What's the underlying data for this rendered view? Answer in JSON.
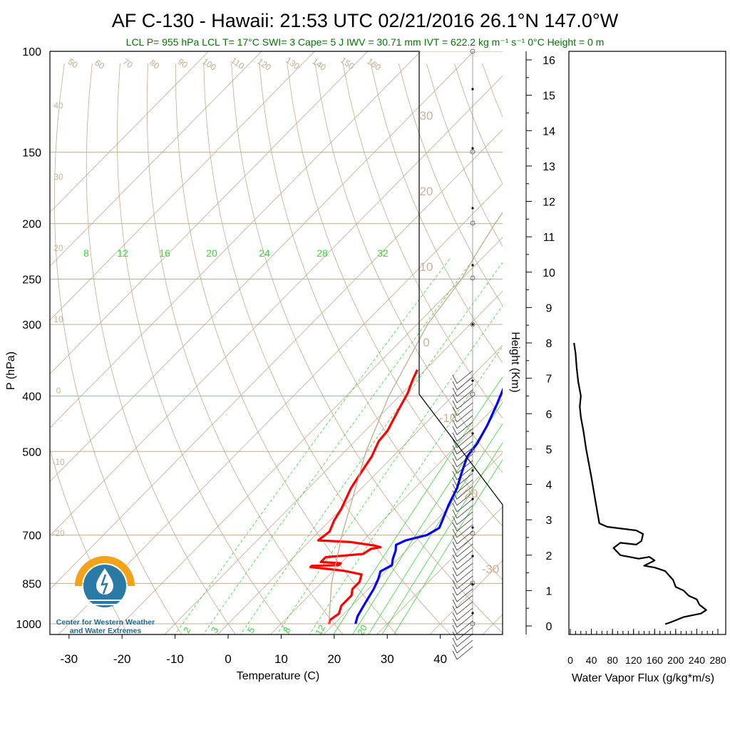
{
  "title": "AF C-130 - Hawaii: 21:53 UTC 02/21/2016  26.1°N 147.0°W",
  "subtitle": "LCL P= 955 hPa  LCL T= 17°C  SWI= 3  Cape= 5 J  IWV = 30.71 mm  IVT = 622.2 kg m⁻¹ s⁻¹  0°C Height = 0 m",
  "logo_text": [
    "Center for Western Weather",
    "and Water Extremes"
  ],
  "colors": {
    "temperature": "#ff0000",
    "dewpoint": "#0000ff",
    "mixing_ratio": "#33dd33",
    "adiabat": "#c8a98a",
    "subtitle": "#007700",
    "flux": "#000000"
  },
  "chart_data": [
    {
      "type": "line",
      "name": "skew-t",
      "xlabel": "Temperature (C)",
      "ylabel": "P (hPa)",
      "x_ticks": [
        -30,
        -20,
        -10,
        0,
        10,
        20,
        30,
        40
      ],
      "y_ticks": [
        100,
        150,
        200,
        250,
        300,
        400,
        500,
        700,
        850,
        1000
      ],
      "y_scale": "log",
      "xlim": [
        -34,
        48
      ],
      "ylim": [
        1050,
        100
      ],
      "dry_adiabat_labels": [
        "50",
        "60",
        "70",
        "80",
        "90",
        "100",
        "110",
        "120",
        "130",
        "140",
        "150",
        "160"
      ],
      "temp_labels_left": [
        "40",
        "30",
        "20",
        "10",
        "0",
        "-10",
        "-20"
      ],
      "temp_labels_right": [
        "30",
        "20",
        "10",
        "0",
        "-10",
        "-20",
        "-30"
      ],
      "mixing_ratio_labels_top": [
        "8",
        "12",
        "16",
        "20",
        "24",
        "28",
        "32"
      ],
      "mixing_ratio_labels_bottom": [
        "2",
        "3",
        "5",
        "8",
        "12",
        "20"
      ],
      "series": [
        {
          "id": "temperature",
          "points": [
            [
              -11.5,
              360
            ],
            [
              -10.5,
              375
            ],
            [
              -9,
              395
            ],
            [
              -7.5,
              425
            ],
            [
              -5.8,
              460
            ],
            [
              -5.5,
              480
            ],
            [
              -4,
              510
            ],
            [
              -3,
              545
            ],
            [
              -2,
              580
            ],
            [
              0,
              630
            ],
            [
              0.8,
              660
            ],
            [
              2,
              690
            ],
            [
              1.5,
              715
            ],
            [
              8,
              720
            ],
            [
              13,
              730
            ],
            [
              14.5,
              735
            ],
            [
              13,
              740
            ],
            [
              12.5,
              755
            ],
            [
              6,
              765
            ],
            [
              6,
              780
            ],
            [
              10,
              784
            ],
            [
              10,
              790
            ],
            [
              5,
              792
            ],
            [
              5,
              796
            ],
            [
              12,
              808
            ],
            [
              14,
              814
            ],
            [
              16,
              820
            ],
            [
              17,
              845
            ],
            [
              17,
              870
            ],
            [
              18,
              892
            ],
            [
              18,
              930
            ],
            [
              19,
              960
            ],
            [
              18.5,
              985
            ],
            [
              19,
              1000
            ]
          ]
        },
        {
          "id": "dewpoint",
          "points": [
            [
              7,
              360
            ],
            [
              8,
              385
            ],
            [
              10,
              415
            ],
            [
              12,
              450
            ],
            [
              13.5,
              485
            ],
            [
              14,
              510
            ],
            [
              16,
              545
            ],
            [
              18,
              580
            ],
            [
              19.5,
              620
            ],
            [
              21,
              655
            ],
            [
              22,
              680
            ],
            [
              21,
              700
            ],
            [
              18,
              715
            ],
            [
              17,
              728
            ],
            [
              18,
              745
            ],
            [
              19,
              770
            ],
            [
              20,
              790
            ],
            [
              19,
              810
            ],
            [
              20,
              835
            ],
            [
              21,
              870
            ],
            [
              22,
              920
            ],
            [
              23,
              970
            ],
            [
              24,
              1000
            ]
          ]
        },
        {
          "id": "parcel",
          "points": [
            [
              19,
              1000
            ],
            [
              17,
              955
            ],
            [
              12,
              850
            ],
            [
              5,
              700
            ],
            [
              -6,
              500
            ],
            [
              -12,
              400
            ],
            [
              -18,
              300
            ],
            [
              -20,
              250
            ],
            [
              -22,
              225
            ],
            [
              -24,
              200
            ],
            [
              -28,
              150
            ],
            [
              -40,
              100
            ]
          ]
        }
      ]
    },
    {
      "type": "line",
      "name": "water-vapor-flux",
      "xlabel": "Water Vapor Flux (g/kg*m/s)",
      "ylabel": "Height (Km)",
      "x_ticks": [
        "0",
        "40",
        "80",
        "120",
        "160",
        "200",
        "240",
        "280"
      ],
      "y_ticks": [
        "0",
        "1",
        "2",
        "3",
        "4",
        "5",
        "6",
        "7",
        "8",
        "9",
        "10",
        "11",
        "12",
        "13",
        "14",
        "15",
        "16"
      ],
      "xlim": [
        0,
        280
      ],
      "ylim": [
        -0.1,
        16.2
      ],
      "points": [
        [
          180,
          0.05
        ],
        [
          190,
          0.1
        ],
        [
          215,
          0.25
        ],
        [
          248,
          0.35
        ],
        [
          258,
          0.45
        ],
        [
          245,
          0.6
        ],
        [
          240,
          0.75
        ],
        [
          225,
          0.85
        ],
        [
          215,
          1.0
        ],
        [
          200,
          1.1
        ],
        [
          195,
          1.3
        ],
        [
          180,
          1.55
        ],
        [
          160,
          1.65
        ],
        [
          140,
          1.7
        ],
        [
          160,
          1.85
        ],
        [
          150,
          1.95
        ],
        [
          130,
          1.9
        ],
        [
          95,
          2.0
        ],
        [
          82,
          2.2
        ],
        [
          95,
          2.35
        ],
        [
          125,
          2.3
        ],
        [
          135,
          2.4
        ],
        [
          138,
          2.6
        ],
        [
          125,
          2.7
        ],
        [
          70,
          2.8
        ],
        [
          55,
          2.9
        ],
        [
          48,
          3.5
        ],
        [
          40,
          4.2
        ],
        [
          30,
          5.0
        ],
        [
          25,
          5.5
        ],
        [
          20,
          5.9
        ],
        [
          18,
          6.2
        ],
        [
          20,
          6.5
        ],
        [
          15,
          6.9
        ],
        [
          12,
          7.3
        ],
        [
          10,
          7.7
        ],
        [
          7,
          8.0
        ]
      ]
    }
  ]
}
